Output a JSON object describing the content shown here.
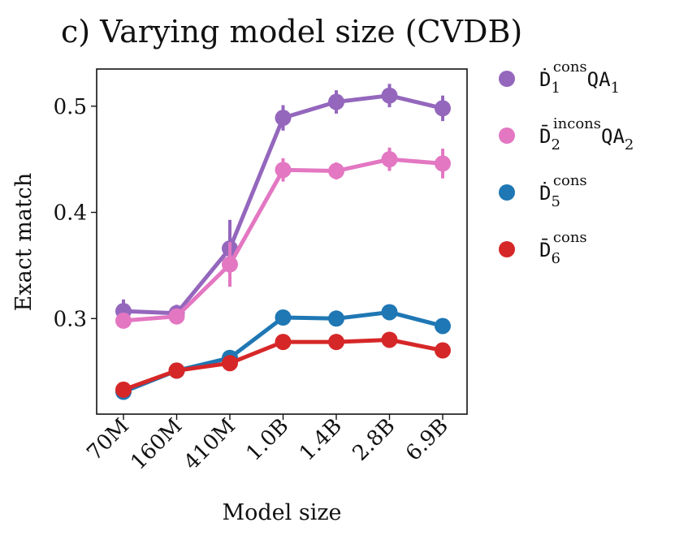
{
  "chart_data": {
    "type": "line",
    "title": "c) Varying model size (CVDB)",
    "xlabel": "Model size",
    "ylabel": "Exact match",
    "categories": [
      "70M",
      "160M",
      "410M",
      "1.0B",
      "1.4B",
      "2.8B",
      "6.9B"
    ],
    "y_ticks": [
      0.3,
      0.4,
      0.5
    ],
    "ylim": [
      0.21,
      0.535
    ],
    "grid": false,
    "legend_position": "right-outside",
    "series": [
      {
        "name": "Ḋ1consQA1",
        "legend": {
          "base": "Ḋ",
          "sub": "1",
          "sup": "cons",
          "suffix": "QA",
          "suffix_sub": "1"
        },
        "color": "#9467bd",
        "values": [
          0.307,
          0.305,
          0.366,
          0.489,
          0.504,
          0.51,
          0.498
        ],
        "errors": [
          0.011,
          0.008,
          0.027,
          0.012,
          0.011,
          0.011,
          0.012
        ]
      },
      {
        "name": "D̄2inconsQA2",
        "legend": {
          "base": "D̄",
          "sub": "2",
          "sup": "incons",
          "suffix": "QA",
          "suffix_sub": "2"
        },
        "color": "#e377c2",
        "values": [
          0.298,
          0.302,
          0.351,
          0.44,
          0.439,
          0.45,
          0.446
        ],
        "errors": [
          0.007,
          0.006,
          0.021,
          0.011,
          0.008,
          0.011,
          0.014
        ]
      },
      {
        "name": "Ḋ5cons",
        "legend": {
          "base": "Ḋ",
          "sub": "5",
          "sup": "cons",
          "suffix": "",
          "suffix_sub": ""
        },
        "color": "#1f77b4",
        "values": [
          0.231,
          0.251,
          0.263,
          0.301,
          0.3,
          0.306,
          0.293
        ],
        "errors": [
          0.003,
          0.003,
          0.005,
          0.003,
          0.003,
          0.003,
          0.003
        ]
      },
      {
        "name": "D̄6cons",
        "legend": {
          "base": "D̄",
          "sub": "6",
          "sup": "cons",
          "suffix": "",
          "suffix_sub": ""
        },
        "color": "#d62728",
        "values": [
          0.233,
          0.251,
          0.258,
          0.278,
          0.278,
          0.28,
          0.27
        ],
        "errors": [
          0.003,
          0.003,
          0.006,
          0.003,
          0.003,
          0.003,
          0.003
        ]
      }
    ]
  }
}
